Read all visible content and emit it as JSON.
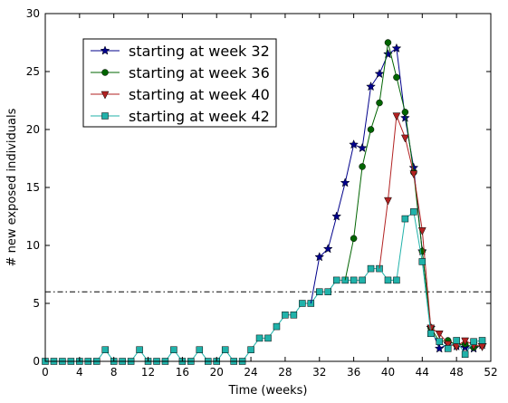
{
  "chart_data": {
    "type": "line",
    "xlabel": "Time (weeks)",
    "ylabel": "# new exposed individuals",
    "xlim": [
      0,
      52
    ],
    "ylim": [
      0,
      30
    ],
    "xticks": [
      0,
      4,
      8,
      12,
      16,
      20,
      24,
      28,
      32,
      36,
      40,
      44,
      48,
      52
    ],
    "yticks": [
      0,
      5,
      10,
      15,
      20,
      25,
      30
    ],
    "threshold": {
      "y": 6,
      "style": "dash-dot",
      "color": "#000000"
    },
    "grid": false,
    "legend_position": "top-left",
    "base": {
      "x": [
        0,
        1,
        2,
        3,
        4,
        5,
        6,
        7,
        8,
        9,
        10,
        11,
        12,
        13,
        14,
        15,
        16,
        17,
        18,
        19,
        20,
        21,
        22,
        23,
        24,
        25,
        26,
        27,
        28,
        29,
        30,
        31,
        32,
        33,
        34,
        35,
        36,
        37,
        38,
        39
      ],
      "y": [
        0,
        0,
        0,
        0,
        0,
        0,
        0,
        1,
        0,
        0,
        0,
        1,
        0,
        0,
        0,
        1,
        0,
        0,
        1,
        0,
        0,
        1,
        0,
        0,
        1,
        2,
        2,
        3,
        4,
        4,
        5,
        5,
        6,
        6,
        7,
        7,
        7,
        7,
        8,
        8
      ]
    },
    "series": [
      {
        "name": "starting at week 32",
        "color": "#00008b",
        "marker": "star",
        "x": [
          32,
          33,
          34,
          35,
          36,
          37,
          38,
          39,
          40,
          41,
          42,
          43,
          44,
          45,
          46,
          47,
          48,
          49,
          50,
          51
        ],
        "y": [
          9,
          9.7,
          12.5,
          15.4,
          18.7,
          18.4,
          23.7,
          24.8,
          26.5,
          27,
          21,
          16.7,
          9.5,
          2.9,
          1.1,
          1.5,
          1.3,
          1.2,
          1.1,
          1.4
        ]
      },
      {
        "name": "starting at week 36",
        "color": "#006400",
        "marker": "circle",
        "x": [
          36,
          37,
          38,
          39,
          40,
          41,
          42,
          43,
          44,
          45,
          46,
          47,
          48,
          49,
          50,
          51
        ],
        "y": [
          10.6,
          16.8,
          20,
          22.3,
          27.5,
          24.5,
          21.5,
          16.3,
          9.5,
          2.9,
          1.7,
          1.8,
          1.4,
          1.5,
          1.2,
          1.4
        ]
      },
      {
        "name": "starting at week 40",
        "color": "#b22222",
        "marker": "triangle-down",
        "x": [
          40,
          41,
          42,
          43,
          44,
          45,
          46,
          47,
          48,
          49,
          50,
          51
        ],
        "y": [
          13.9,
          21.2,
          19.3,
          16.2,
          11.3,
          2.9,
          2.4,
          1.5,
          1.3,
          1.8,
          1.4,
          1.3
        ]
      },
      {
        "name": "starting at week 42",
        "color": "#20b2aa",
        "marker": "square",
        "x": [
          40,
          41,
          42,
          43,
          44,
          45,
          46,
          47,
          48,
          49,
          50,
          51
        ],
        "y": [
          7,
          7,
          12.3,
          12.9,
          8.6,
          2.4,
          1.7,
          1.1,
          1.8,
          0.6,
          1.7,
          1.8
        ]
      }
    ]
  }
}
